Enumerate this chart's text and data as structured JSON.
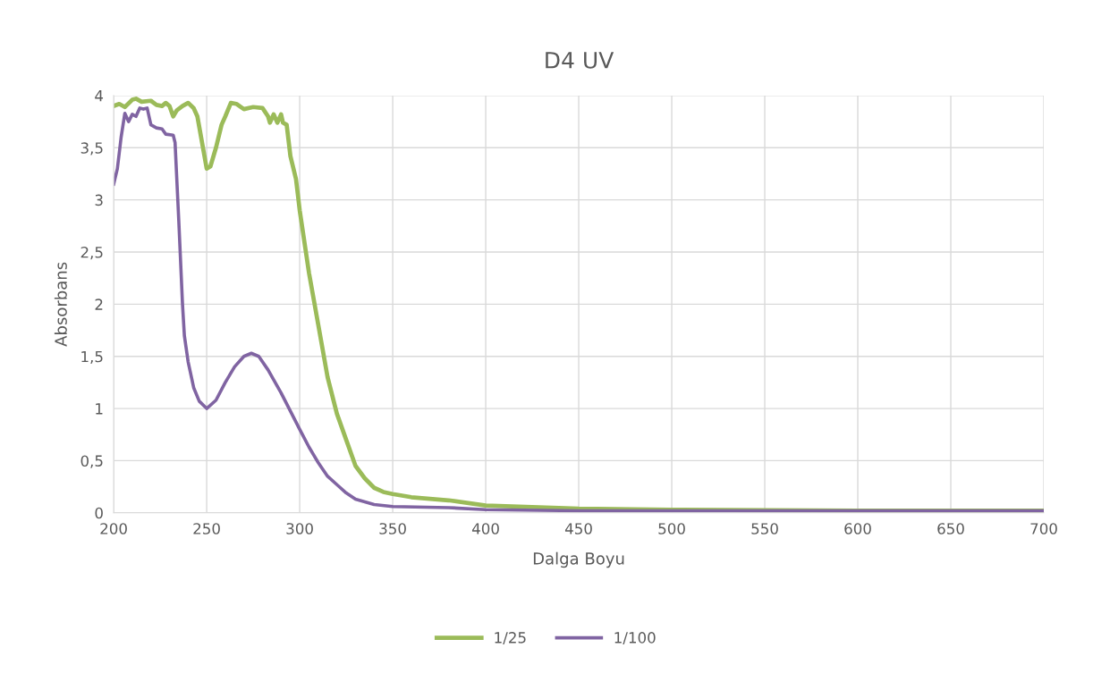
{
  "chart_data": {
    "type": "line",
    "title": "D4 UV",
    "xlabel": "Dalga Boyu",
    "ylabel": "Absorbans",
    "xlim": [
      200,
      700
    ],
    "xticks": [
      200,
      250,
      300,
      350,
      400,
      450,
      500,
      550,
      600,
      650,
      700
    ],
    "ylim": [
      0,
      4
    ],
    "yticks": [
      0,
      {
        "value": 0.5,
        "label": "0,5"
      },
      1,
      {
        "value": 1.5,
        "label": "1,5"
      },
      2,
      {
        "value": 2.5,
        "label": "2,5"
      },
      3,
      {
        "value": 3.5,
        "label": "3,5"
      },
      4
    ],
    "grid": true,
    "legend": "bottom",
    "marker": "none",
    "line_style": "solid",
    "series": [
      {
        "name": "1/25",
        "color": "#9bbb59",
        "x": [
          200,
          203,
          206,
          210,
          212,
          215,
          220,
          223,
          226,
          228,
          230,
          232,
          234,
          237,
          240,
          243,
          245,
          248,
          250,
          252,
          255,
          258,
          260,
          263,
          266,
          270,
          275,
          280,
          283,
          284,
          286,
          288,
          290,
          291,
          293,
          295,
          298,
          300,
          305,
          310,
          315,
          320,
          325,
          330,
          335,
          340,
          345,
          350,
          360,
          380,
          400,
          450,
          500,
          600,
          700
        ],
        "values": [
          3.9,
          3.92,
          3.89,
          3.96,
          3.97,
          3.94,
          3.95,
          3.91,
          3.9,
          3.93,
          3.9,
          3.8,
          3.86,
          3.9,
          3.93,
          3.88,
          3.8,
          3.5,
          3.3,
          3.32,
          3.5,
          3.72,
          3.8,
          3.93,
          3.92,
          3.87,
          3.89,
          3.88,
          3.8,
          3.74,
          3.82,
          3.74,
          3.82,
          3.74,
          3.72,
          3.42,
          3.2,
          2.9,
          2.3,
          1.8,
          1.3,
          0.95,
          0.7,
          0.45,
          0.33,
          0.24,
          0.2,
          0.18,
          0.15,
          0.12,
          0.07,
          0.04,
          0.03,
          0.02,
          0.02
        ]
      },
      {
        "name": "1/100",
        "color": "#8064a2",
        "x": [
          200,
          202,
          204,
          206,
          208,
          210,
          212,
          214,
          216,
          218,
          220,
          223,
          226,
          228,
          232,
          233,
          235,
          237,
          238,
          240,
          243,
          246,
          250,
          255,
          260,
          265,
          270,
          274,
          278,
          283,
          290,
          300,
          305,
          310,
          315,
          320,
          325,
          330,
          340,
          350,
          380,
          400,
          450,
          700
        ],
        "values": [
          3.15,
          3.3,
          3.6,
          3.83,
          3.75,
          3.82,
          3.8,
          3.88,
          3.87,
          3.88,
          3.72,
          3.69,
          3.68,
          3.63,
          3.62,
          3.55,
          2.8,
          2.0,
          1.7,
          1.45,
          1.2,
          1.07,
          1.0,
          1.08,
          1.25,
          1.4,
          1.5,
          1.53,
          1.5,
          1.37,
          1.15,
          0.8,
          0.63,
          0.48,
          0.35,
          0.27,
          0.19,
          0.13,
          0.08,
          0.06,
          0.05,
          0.03,
          0.02,
          0.02
        ]
      }
    ]
  }
}
